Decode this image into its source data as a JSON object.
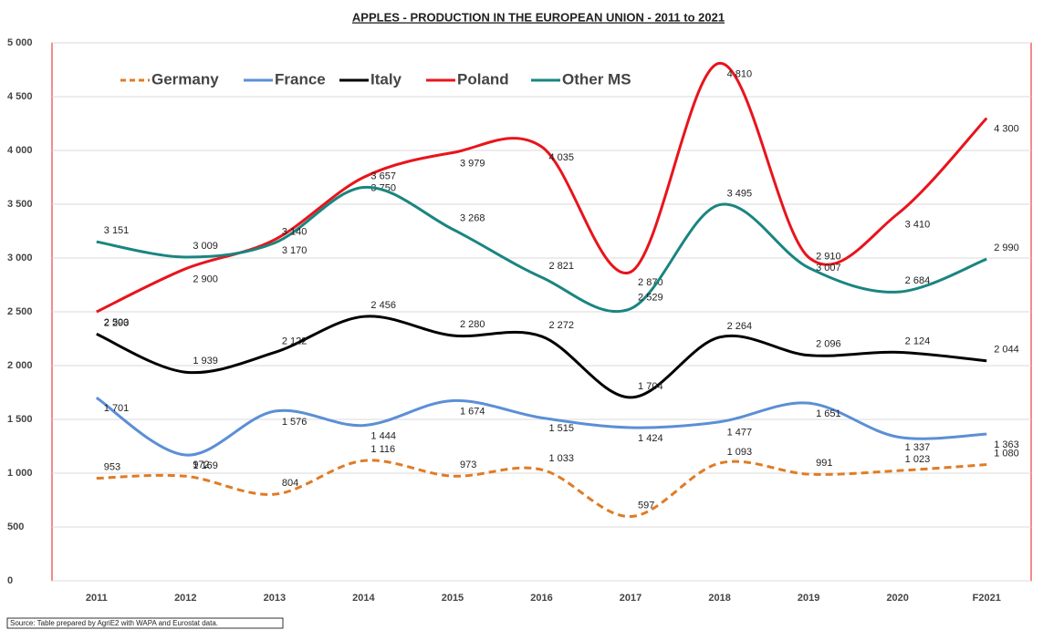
{
  "chart_data": {
    "type": "line",
    "title": "APPLES - PRODUCTION IN THE EUROPEAN UNION - 2011 to 2021",
    "source": "Source: Table prepared by AgriE2 with WAPA and Eurostat data.",
    "categories": [
      "2011",
      "2012",
      "2013",
      "2014",
      "2015",
      "2016",
      "2017",
      "2018",
      "2019",
      "2020",
      "F2021"
    ],
    "ylim": [
      0,
      5000
    ],
    "yticks": [
      0,
      500,
      {
        "value": 1000,
        "label": "1 000"
      },
      {
        "value": 1500,
        "label": "1 500"
      },
      {
        "value": 2000,
        "label": "2 000"
      },
      {
        "value": 2500,
        "label": "2 500"
      },
      {
        "value": 3000,
        "label": "3 000"
      },
      {
        "value": 3500,
        "label": "3 500"
      },
      {
        "value": 4000,
        "label": "4 000"
      },
      {
        "value": 4500,
        "label": "4 500"
      },
      {
        "value": 5000,
        "label": "5 000"
      }
    ],
    "grid": true,
    "legend": "top-left",
    "smooth": true,
    "series": [
      {
        "name": "Germany",
        "color": "#e07b25",
        "dashed": true,
        "values": [
          953,
          972,
          804,
          1116,
          973,
          1033,
          597,
          1093,
          991,
          1023,
          1080
        ],
        "value_labels": [
          "953",
          "972",
          "804",
          "1 116",
          "973",
          "1 033",
          "597",
          "1 093",
          "991",
          "1 023",
          "1 080"
        ]
      },
      {
        "name": "France",
        "color": "#5b8fd6",
        "values": [
          1701,
          1169,
          1576,
          1444,
          1674,
          1515,
          1424,
          1477,
          1651,
          1337,
          1363
        ],
        "value_labels": [
          "1 701",
          "1 169",
          "1 576",
          "1 444",
          "1 674",
          "1 515",
          "1 424",
          "1 477",
          "1 651",
          "1 337",
          "1 363"
        ]
      },
      {
        "name": "Italy",
        "color": "#000000",
        "values": [
          2293,
          1939,
          2122,
          2456,
          2280,
          2272,
          1704,
          2264,
          2096,
          2124,
          2044
        ],
        "value_labels": [
          "2 293",
          "1 939",
          "2 122",
          "2 456",
          "2 280",
          "2 272",
          "1 704",
          "2 264",
          "2 096",
          "2 124",
          "2 044"
        ]
      },
      {
        "name": "Poland",
        "color": "#e8141c",
        "values": [
          2500,
          2900,
          3170,
          3750,
          3979,
          4035,
          2870,
          4810,
          3007,
          3410,
          4300
        ],
        "value_labels": [
          "2 500",
          "2 900",
          "3 170",
          "3 750",
          "3 979",
          "4 035",
          "2 870",
          "4 810",
          "3 007",
          "3 410",
          "4 300"
        ]
      },
      {
        "name": "Other MS",
        "color": "#1a8580",
        "values": [
          3151,
          3009,
          3140,
          3657,
          3268,
          2821,
          2529,
          3495,
          2910,
          2684,
          2990
        ],
        "value_labels": [
          "3 151",
          "3 009",
          "3 140",
          "3 657",
          "3 268",
          "2 821",
          "2 529",
          "3 495",
          "2 910",
          "2 684",
          "2 990"
        ]
      }
    ]
  }
}
